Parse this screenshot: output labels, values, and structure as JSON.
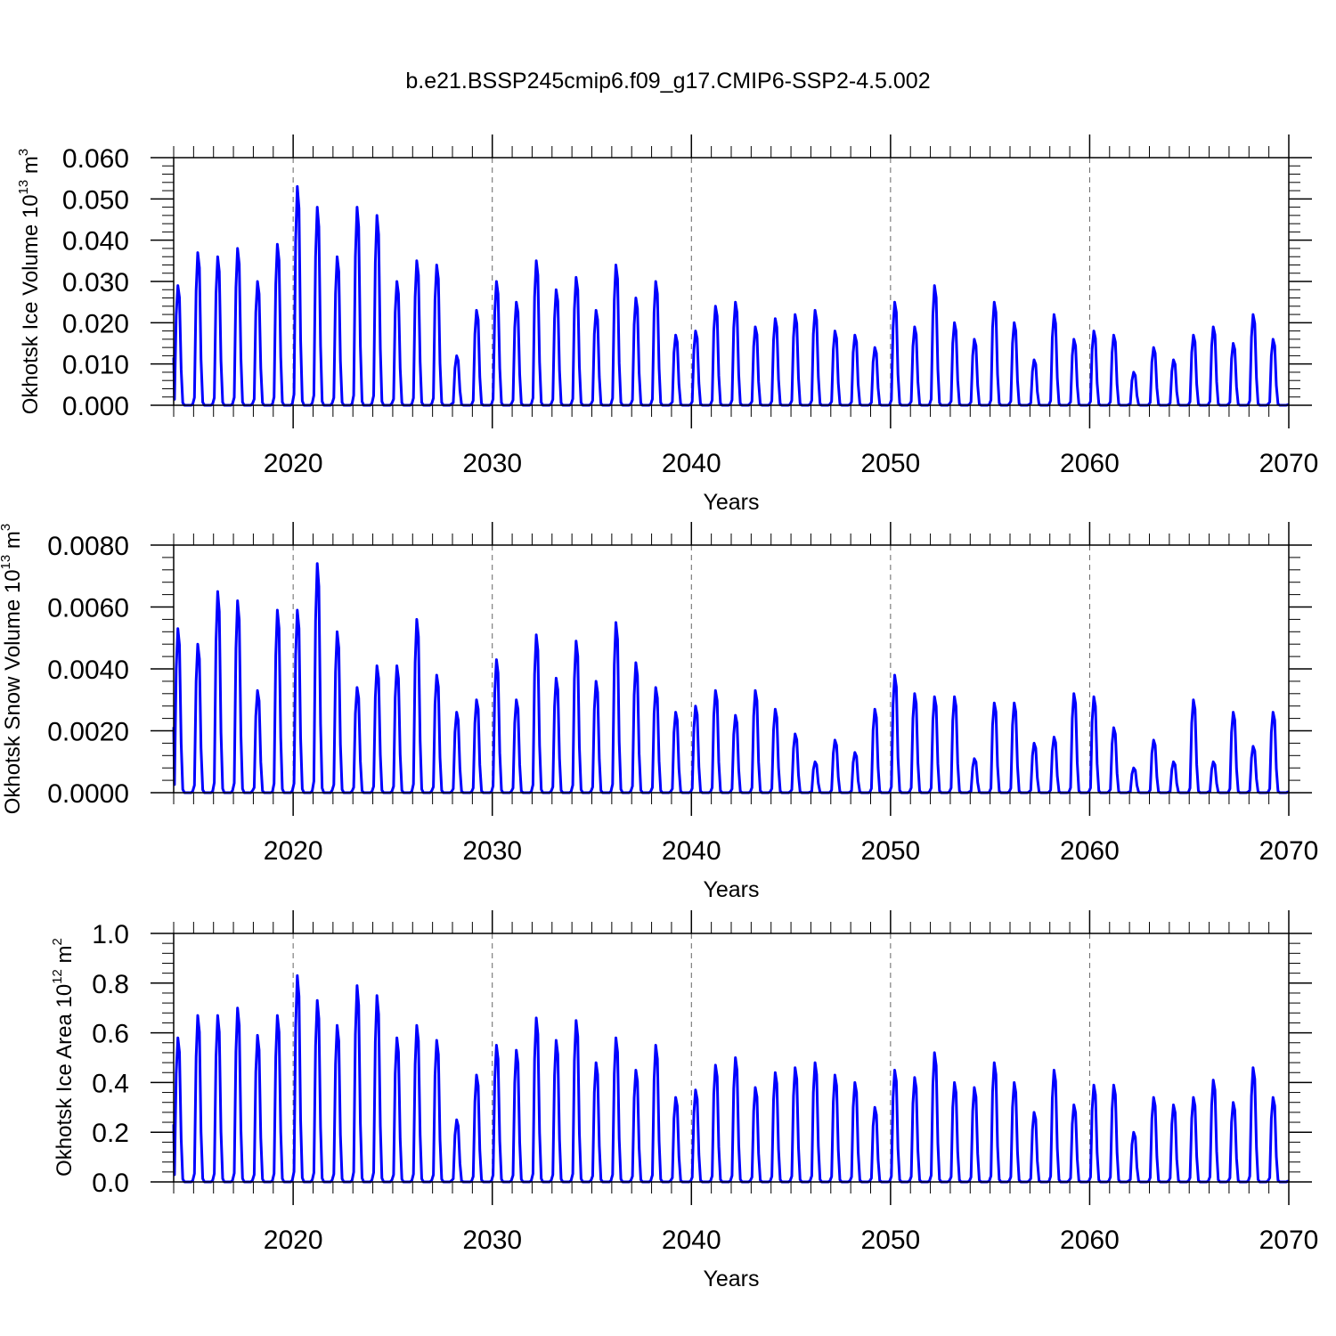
{
  "title": "b.e21.BSSP245cmip6.f09_g17.CMIP6-SSP2-4.5.002",
  "series_color": "#0000ff",
  "chart_data": [
    {
      "type": "line",
      "title": "b.e21.BSSP245cmip6.f09_g17.CMIP6-SSP2-4.5.002",
      "xlabel": "Years",
      "ylabel_main": "Okhotsk Ice Volume 10",
      "ylabel_exp": "13",
      "ylabel_unit": " m",
      "ylabel_unit_exp": "3",
      "xlim": [
        2014,
        2070
      ],
      "ylim": [
        0,
        0.06
      ],
      "x_ticks": [
        "2020",
        "2030",
        "2040",
        "2050",
        "2060",
        "2070"
      ],
      "y_ticks": [
        "0.000",
        "0.010",
        "0.020",
        "0.030",
        "0.040",
        "0.050",
        "0.060"
      ],
      "grid": "dashed vertical lines at decades",
      "annual_peaks": [
        0.029,
        0.037,
        0.036,
        0.038,
        0.03,
        0.039,
        0.053,
        0.048,
        0.036,
        0.048,
        0.046,
        0.03,
        0.035,
        0.034,
        0.012,
        0.023,
        0.03,
        0.025,
        0.035,
        0.028,
        0.031,
        0.023,
        0.034,
        0.026,
        0.03,
        0.017,
        0.018,
        0.024,
        0.025,
        0.019,
        0.021,
        0.022,
        0.023,
        0.018,
        0.017,
        0.014,
        0.025,
        0.019,
        0.029,
        0.02,
        0.016,
        0.025,
        0.02,
        0.011,
        0.022,
        0.016,
        0.018,
        0.017,
        0.008,
        0.014,
        0.011,
        0.017,
        0.019,
        0.015,
        0.022,
        0.016
      ]
    },
    {
      "type": "line",
      "xlabel": "Years",
      "ylabel_main": "Okhotsk Snow Volume 10",
      "ylabel_exp": "13",
      "ylabel_unit": " m",
      "ylabel_unit_exp": "3",
      "xlim": [
        2014,
        2070
      ],
      "ylim": [
        0,
        0.008
      ],
      "x_ticks": [
        "2020",
        "2030",
        "2040",
        "2050",
        "2060",
        "2070"
      ],
      "y_ticks": [
        "0.0000",
        "0.0020",
        "0.0040",
        "0.0060",
        "0.0080"
      ],
      "grid": "dashed vertical lines at decades",
      "annual_peaks": [
        0.0053,
        0.0048,
        0.0065,
        0.0062,
        0.0033,
        0.0059,
        0.0059,
        0.0074,
        0.0052,
        0.0034,
        0.0041,
        0.0041,
        0.0056,
        0.0038,
        0.0026,
        0.003,
        0.0043,
        0.003,
        0.0051,
        0.0037,
        0.0049,
        0.0036,
        0.0055,
        0.0042,
        0.0034,
        0.0026,
        0.0028,
        0.0033,
        0.0025,
        0.0033,
        0.0027,
        0.0019,
        0.001,
        0.0017,
        0.0013,
        0.0027,
        0.0038,
        0.0032,
        0.0031,
        0.0031,
        0.0011,
        0.0029,
        0.0029,
        0.0016,
        0.0018,
        0.0032,
        0.0031,
        0.0021,
        0.0008,
        0.0017,
        0.001,
        0.003,
        0.001,
        0.0026,
        0.0015,
        0.0026
      ]
    },
    {
      "type": "line",
      "xlabel": "Years",
      "ylabel_main": "Okhotsk Ice Area 10",
      "ylabel_exp": "12",
      "ylabel_unit": " m",
      "ylabel_unit_exp": "2",
      "xlim": [
        2014,
        2070
      ],
      "ylim": [
        0,
        1.0
      ],
      "x_ticks": [
        "2020",
        "2030",
        "2040",
        "2050",
        "2060",
        "2070"
      ],
      "y_ticks": [
        "0.0",
        "0.2",
        "0.4",
        "0.6",
        "0.8",
        "1.0"
      ],
      "grid": "dashed vertical lines at decades",
      "annual_peaks": [
        0.58,
        0.67,
        0.67,
        0.7,
        0.59,
        0.67,
        0.83,
        0.73,
        0.63,
        0.79,
        0.75,
        0.58,
        0.63,
        0.57,
        0.25,
        0.43,
        0.55,
        0.53,
        0.66,
        0.57,
        0.65,
        0.48,
        0.58,
        0.45,
        0.55,
        0.34,
        0.37,
        0.47,
        0.5,
        0.38,
        0.44,
        0.46,
        0.48,
        0.43,
        0.4,
        0.3,
        0.45,
        0.42,
        0.52,
        0.4,
        0.38,
        0.48,
        0.4,
        0.28,
        0.45,
        0.31,
        0.39,
        0.39,
        0.2,
        0.34,
        0.31,
        0.34,
        0.41,
        0.32,
        0.46,
        0.34
      ]
    }
  ]
}
